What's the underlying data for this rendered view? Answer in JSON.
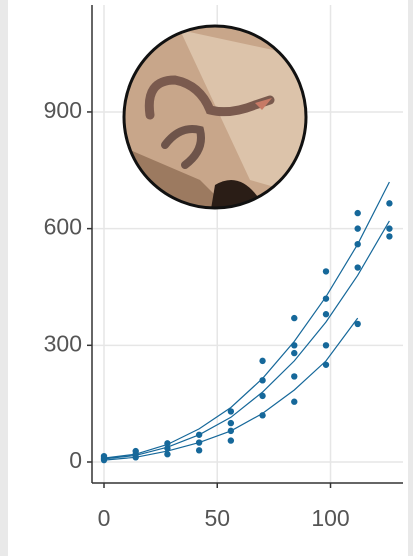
{
  "chart_data": {
    "type": "scatter",
    "color": "#16689a",
    "grid": true,
    "xlim": [
      -5.3,
      132
    ],
    "ylim": [
      -54,
      1175
    ],
    "xticks": [
      0,
      50,
      100
    ],
    "yticks": [
      0,
      300,
      600,
      900
    ],
    "x": [
      0,
      0,
      0,
      14,
      14,
      14,
      28,
      28,
      28,
      42,
      42,
      42,
      56,
      56,
      56,
      56,
      70,
      70,
      70,
      70,
      84,
      84,
      84,
      84,
      84,
      98,
      98,
      98,
      98,
      98,
      112,
      112,
      112,
      112,
      112,
      126,
      126,
      126
    ],
    "y": [
      5,
      10,
      15,
      12,
      20,
      28,
      20,
      35,
      48,
      30,
      50,
      70,
      55,
      80,
      100,
      130,
      120,
      170,
      210,
      260,
      155,
      220,
      280,
      300,
      370,
      250,
      300,
      380,
      420,
      490,
      355,
      500,
      560,
      600,
      640,
      580,
      600,
      665
    ],
    "curves": [
      {
        "x": [
          0,
          14,
          28,
          42,
          56,
          70,
          84,
          98,
          112,
          126
        ],
        "values": [
          10,
          20,
          45,
          85,
          140,
          215,
          310,
          425,
          560,
          720
        ]
      },
      {
        "x": [
          0,
          14,
          28,
          42,
          56,
          70,
          84,
          98,
          112,
          126
        ],
        "values": [
          8,
          17,
          38,
          70,
          115,
          180,
          260,
          360,
          480,
          620
        ]
      },
      {
        "x": [
          0,
          14,
          28,
          42,
          56,
          70,
          84,
          98,
          112,
          126
        ],
        "values": [
          5,
          12,
          28,
          50,
          80,
          125,
          185,
          260,
          370,
          null
        ]
      }
    ]
  }
}
